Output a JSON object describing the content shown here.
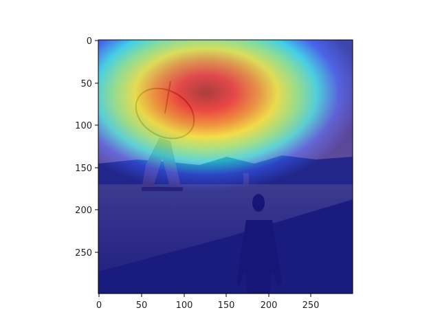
{
  "image": {
    "description_icon": "heatmap-overlay-photo",
    "scene": [
      "radio-telescope-dish",
      "person-walking-on-road",
      "mountains",
      "grassland",
      "sky"
    ],
    "colormap": "jet",
    "colormap_stops": [
      "#00007f",
      "#0000ff",
      "#00ffff",
      "#7fff7f",
      "#ffff00",
      "#ff7f00",
      "#ff0000",
      "#7f0000"
    ]
  },
  "axes": {
    "x_ticks": [
      "0",
      "50",
      "100",
      "150",
      "200",
      "250"
    ],
    "y_ticks": [
      "0",
      "50",
      "100",
      "150",
      "200",
      "250"
    ],
    "x_range": [
      0,
      299
    ],
    "y_range": [
      0,
      299
    ]
  }
}
